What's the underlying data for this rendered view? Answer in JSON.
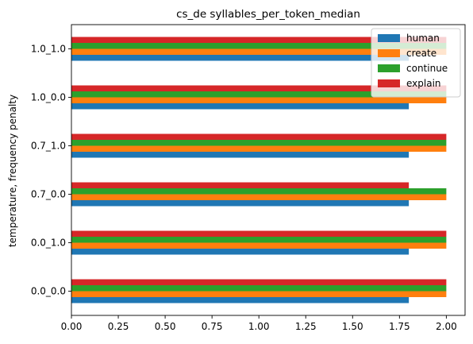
{
  "chart_data": {
    "type": "bar",
    "orientation": "horizontal",
    "title": "cs_de syllables_per_token_median",
    "xlabel": "",
    "ylabel": "temperature, frequency penalty",
    "categories": [
      "0.0_0.0",
      "0.0_1.0",
      "0.7_0.0",
      "0.7_1.0",
      "1.0_0.0",
      "1.0_1.0"
    ],
    "series": [
      {
        "name": "human",
        "color": "#1f77b4",
        "values": [
          1.8,
          1.8,
          1.8,
          1.8,
          1.8,
          1.8
        ]
      },
      {
        "name": "create",
        "color": "#ff7f0e",
        "values": [
          2.0,
          2.0,
          2.0,
          2.0,
          2.0,
          2.0
        ]
      },
      {
        "name": "continue",
        "color": "#2ca02c",
        "values": [
          2.0,
          2.0,
          2.0,
          2.0,
          2.0,
          2.0
        ]
      },
      {
        "name": "explain",
        "color": "#d62728",
        "values": [
          2.0,
          2.0,
          1.8,
          2.0,
          2.0,
          2.0
        ]
      }
    ],
    "xlim": [
      0,
      2.1
    ],
    "xticks": [
      "0.00",
      "0.25",
      "0.50",
      "0.75",
      "1.00",
      "1.25",
      "1.50",
      "1.75",
      "2.00"
    ],
    "legend_position": "top-right",
    "grid": false
  }
}
